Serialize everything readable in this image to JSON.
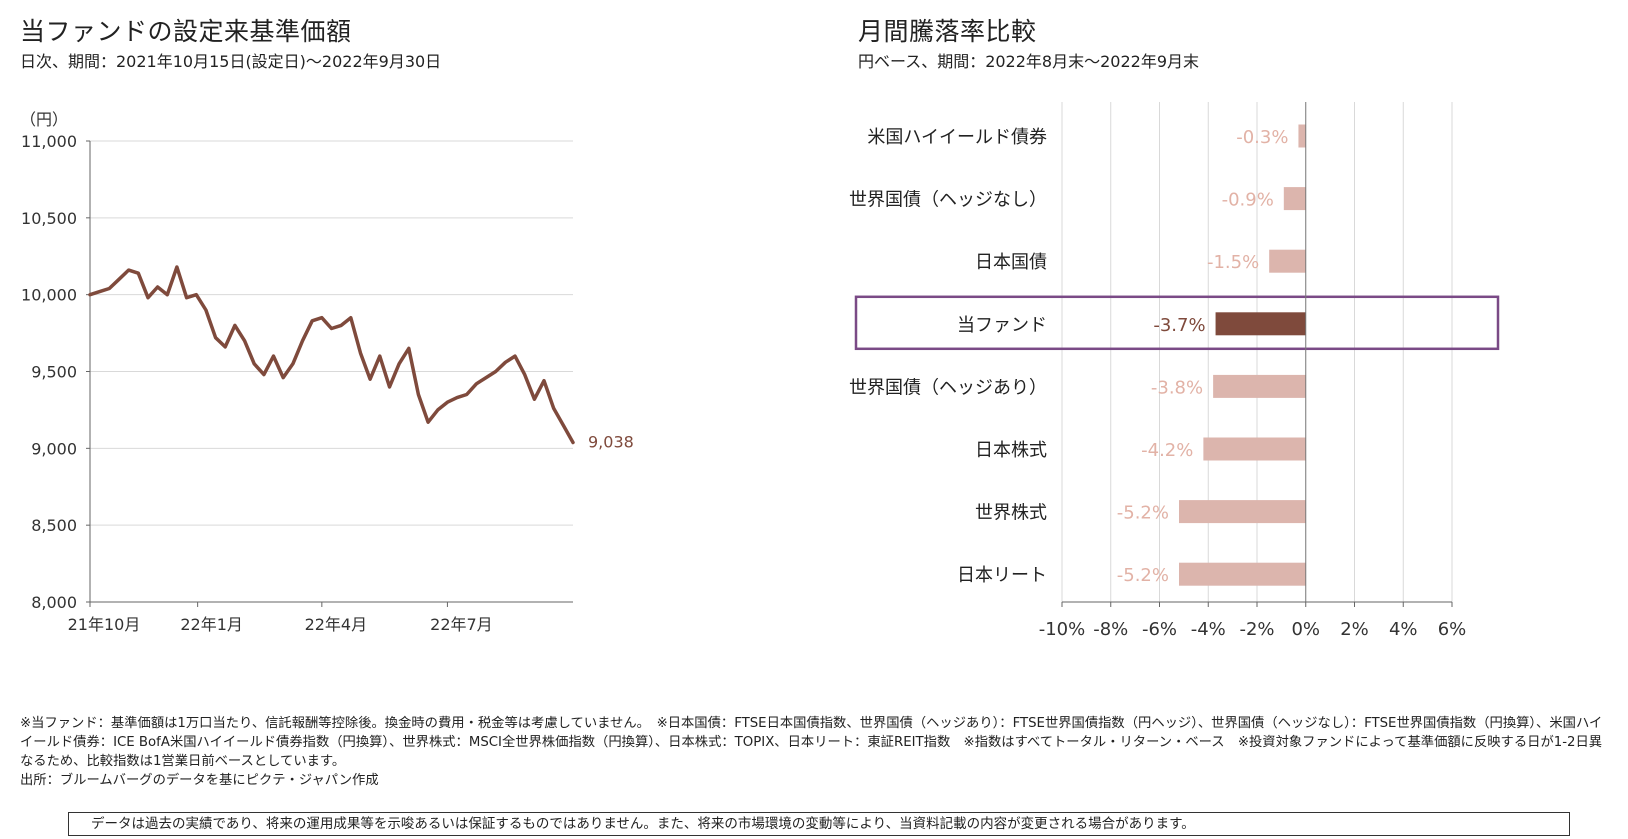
{
  "left_panel": {
    "title": "当ファンドの設定来基準価額",
    "subtitle": "日次、期間：2021年10月15日(設定日)～2022年9月30日"
  },
  "right_panel": {
    "title": "月間騰落率比較",
    "subtitle": "円ベース、期間：2022年8月末～2022年9月末"
  },
  "colors": {
    "line": "#7f4a3c",
    "bar_highlight": "#7f4a3c",
    "bar_normal": "#dcb5ad",
    "label_normal": "#e2b2a6",
    "highlight_box": "#7a4a86",
    "grid": "#d9d9d9"
  },
  "chart_data": [
    {
      "type": "line",
      "ylabel": "（円）",
      "ylim": [
        8000,
        11000
      ],
      "yticks": [
        8000,
        8500,
        9000,
        9500,
        10000,
        10500,
        11000
      ],
      "ytick_labels": [
        "8,000",
        "8,500",
        "9,000",
        "9,500",
        "10,000",
        "10,500",
        "11,000"
      ],
      "x_tick_labels": [
        "21年10月",
        "22年1月",
        "22年4月",
        "22年7月"
      ],
      "x_tick_dates": [
        "2021-10-01",
        "2022-01-01",
        "2022-04-01",
        "2022-07-01"
      ],
      "end_label": "9,038",
      "series": [
        {
          "x": [
            "2021-10-15",
            "2021-10-22",
            "2021-10-29",
            "2021-11-05",
            "2021-11-12",
            "2021-11-19",
            "2021-11-26",
            "2021-12-03",
            "2021-12-10",
            "2021-12-17",
            "2021-12-24",
            "2021-12-31",
            "2022-01-07",
            "2022-01-14",
            "2022-01-21",
            "2022-01-28",
            "2022-02-04",
            "2022-02-11",
            "2022-02-18",
            "2022-02-25",
            "2022-03-04",
            "2022-03-11",
            "2022-03-18",
            "2022-03-25",
            "2022-04-01",
            "2022-04-08",
            "2022-04-15",
            "2022-04-22",
            "2022-04-29",
            "2022-05-06",
            "2022-05-13",
            "2022-05-20",
            "2022-05-27",
            "2022-06-03",
            "2022-06-10",
            "2022-06-17",
            "2022-06-24",
            "2022-07-01",
            "2022-07-08",
            "2022-07-15",
            "2022-07-22",
            "2022-07-29",
            "2022-08-05",
            "2022-08-12",
            "2022-08-19",
            "2022-08-26",
            "2022-09-02",
            "2022-09-09",
            "2022-09-16",
            "2022-09-23",
            "2022-09-30"
          ],
          "y": [
            10000,
            10020,
            10040,
            10100,
            10160,
            10140,
            9980,
            10050,
            10000,
            10180,
            9980,
            10000,
            9900,
            9720,
            9660,
            9800,
            9700,
            9550,
            9480,
            9600,
            9460,
            9550,
            9700,
            9830,
            9850,
            9780,
            9800,
            9850,
            9620,
            9450,
            9600,
            9400,
            9550,
            9650,
            9350,
            9170,
            9250,
            9300,
            9330,
            9350,
            9420,
            9460,
            9500,
            9560,
            9600,
            9480,
            9320,
            9440,
            9260,
            9150,
            9038
          ]
        }
      ]
    },
    {
      "type": "bar",
      "orientation": "horizontal",
      "categories": [
        "米国ハイイールド債券",
        "世界国債（ヘッジなし）",
        "日本国債",
        "当ファンド",
        "世界国債（ヘッジあり）",
        "日本株式",
        "世界株式",
        "日本リート"
      ],
      "values": [
        -0.3,
        -0.9,
        -1.5,
        -3.7,
        -3.8,
        -4.2,
        -5.2,
        -5.2
      ],
      "value_labels": [
        "-0.3%",
        "-0.9%",
        "-1.5%",
        "-3.7%",
        "-3.8%",
        "-4.2%",
        "-5.2%",
        "-5.2%"
      ],
      "highlight": "当ファンド",
      "xlim": [
        -10,
        6
      ],
      "xticks": [
        -10,
        -8,
        -6,
        -4,
        -2,
        0,
        2,
        4,
        6
      ],
      "xtick_labels": [
        "-10%",
        "-8%",
        "-6%",
        "-4%",
        "-2%",
        "0%",
        "2%",
        "4%",
        "6%"
      ]
    }
  ],
  "notes": [
    "※当ファンド：基準価額は1万口当たり、信託報酬等控除後。換金時の費用・税金等は考慮していません。　※日本国債：FTSE日本国債指数、世界国債（ヘッジあり）：FTSE世界国債指数（円ヘッジ）、世界国債（ヘッジなし）：FTSE世界国債指数（円換算）、米国ハイイールド債券：ICE BofA米国ハイイールド債券指数（円換算）、世界株式：MSCI全世界株価指数（円換算）、日本株式：TOPIX、日本リート：東証REIT指数　※指数はすべてトータル・リターン・ベース　※投資対象ファンドによって基準価額に反映する日が1-2日異なるため、比較指数は1営業日前ベースとしています。",
    "出所：ブルームバーグのデータを基にピクテ・ジャパン作成"
  ],
  "disclaimer": "データは過去の実績であり、将来の運用成果等を示唆あるいは保証するものではありません。また、将来の市場環境の変動等により、当資料記載の内容が変更される場合があります。"
}
